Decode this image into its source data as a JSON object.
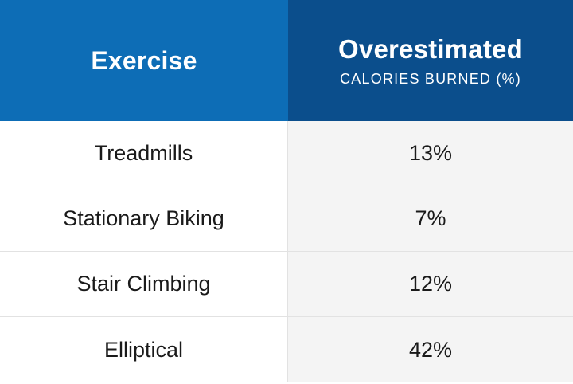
{
  "chart_data": {
    "type": "table",
    "columns": [
      {
        "title": "Exercise",
        "subtitle": ""
      },
      {
        "title": "Overestimated",
        "subtitle": "CALORIES BURNED (%)"
      }
    ],
    "rows": [
      {
        "exercise": "Treadmills",
        "value": "13%"
      },
      {
        "exercise": "Stationary Biking",
        "value": "7%"
      },
      {
        "exercise": "Stair Climbing",
        "value": "12%"
      },
      {
        "exercise": "Elliptical",
        "value": "42%"
      }
    ],
    "values": [
      13,
      7,
      12,
      42
    ]
  },
  "colors": {
    "header_left": "#0d6db6",
    "header_right": "#0b4e8c",
    "stripe": "#f4f4f4"
  }
}
